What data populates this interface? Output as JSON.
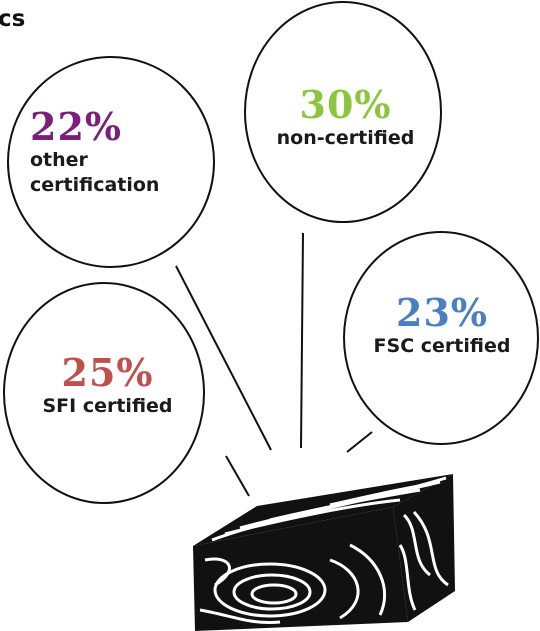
{
  "header": {
    "title_fragment": "cs"
  },
  "chart_data": {
    "type": "pie",
    "title": "",
    "slices": [
      {
        "label": "other certification",
        "value": 22,
        "display": "22%",
        "color": "#7b1f7a"
      },
      {
        "label": "non-certified",
        "value": 30,
        "display": "30%",
        "color": "#8cc63f"
      },
      {
        "label": "FSC certified",
        "value": 23,
        "display": "23%",
        "color": "#4a7fc1"
      },
      {
        "label": "SFI certified",
        "value": 25,
        "display": "25%",
        "color": "#c0504d"
      }
    ]
  }
}
